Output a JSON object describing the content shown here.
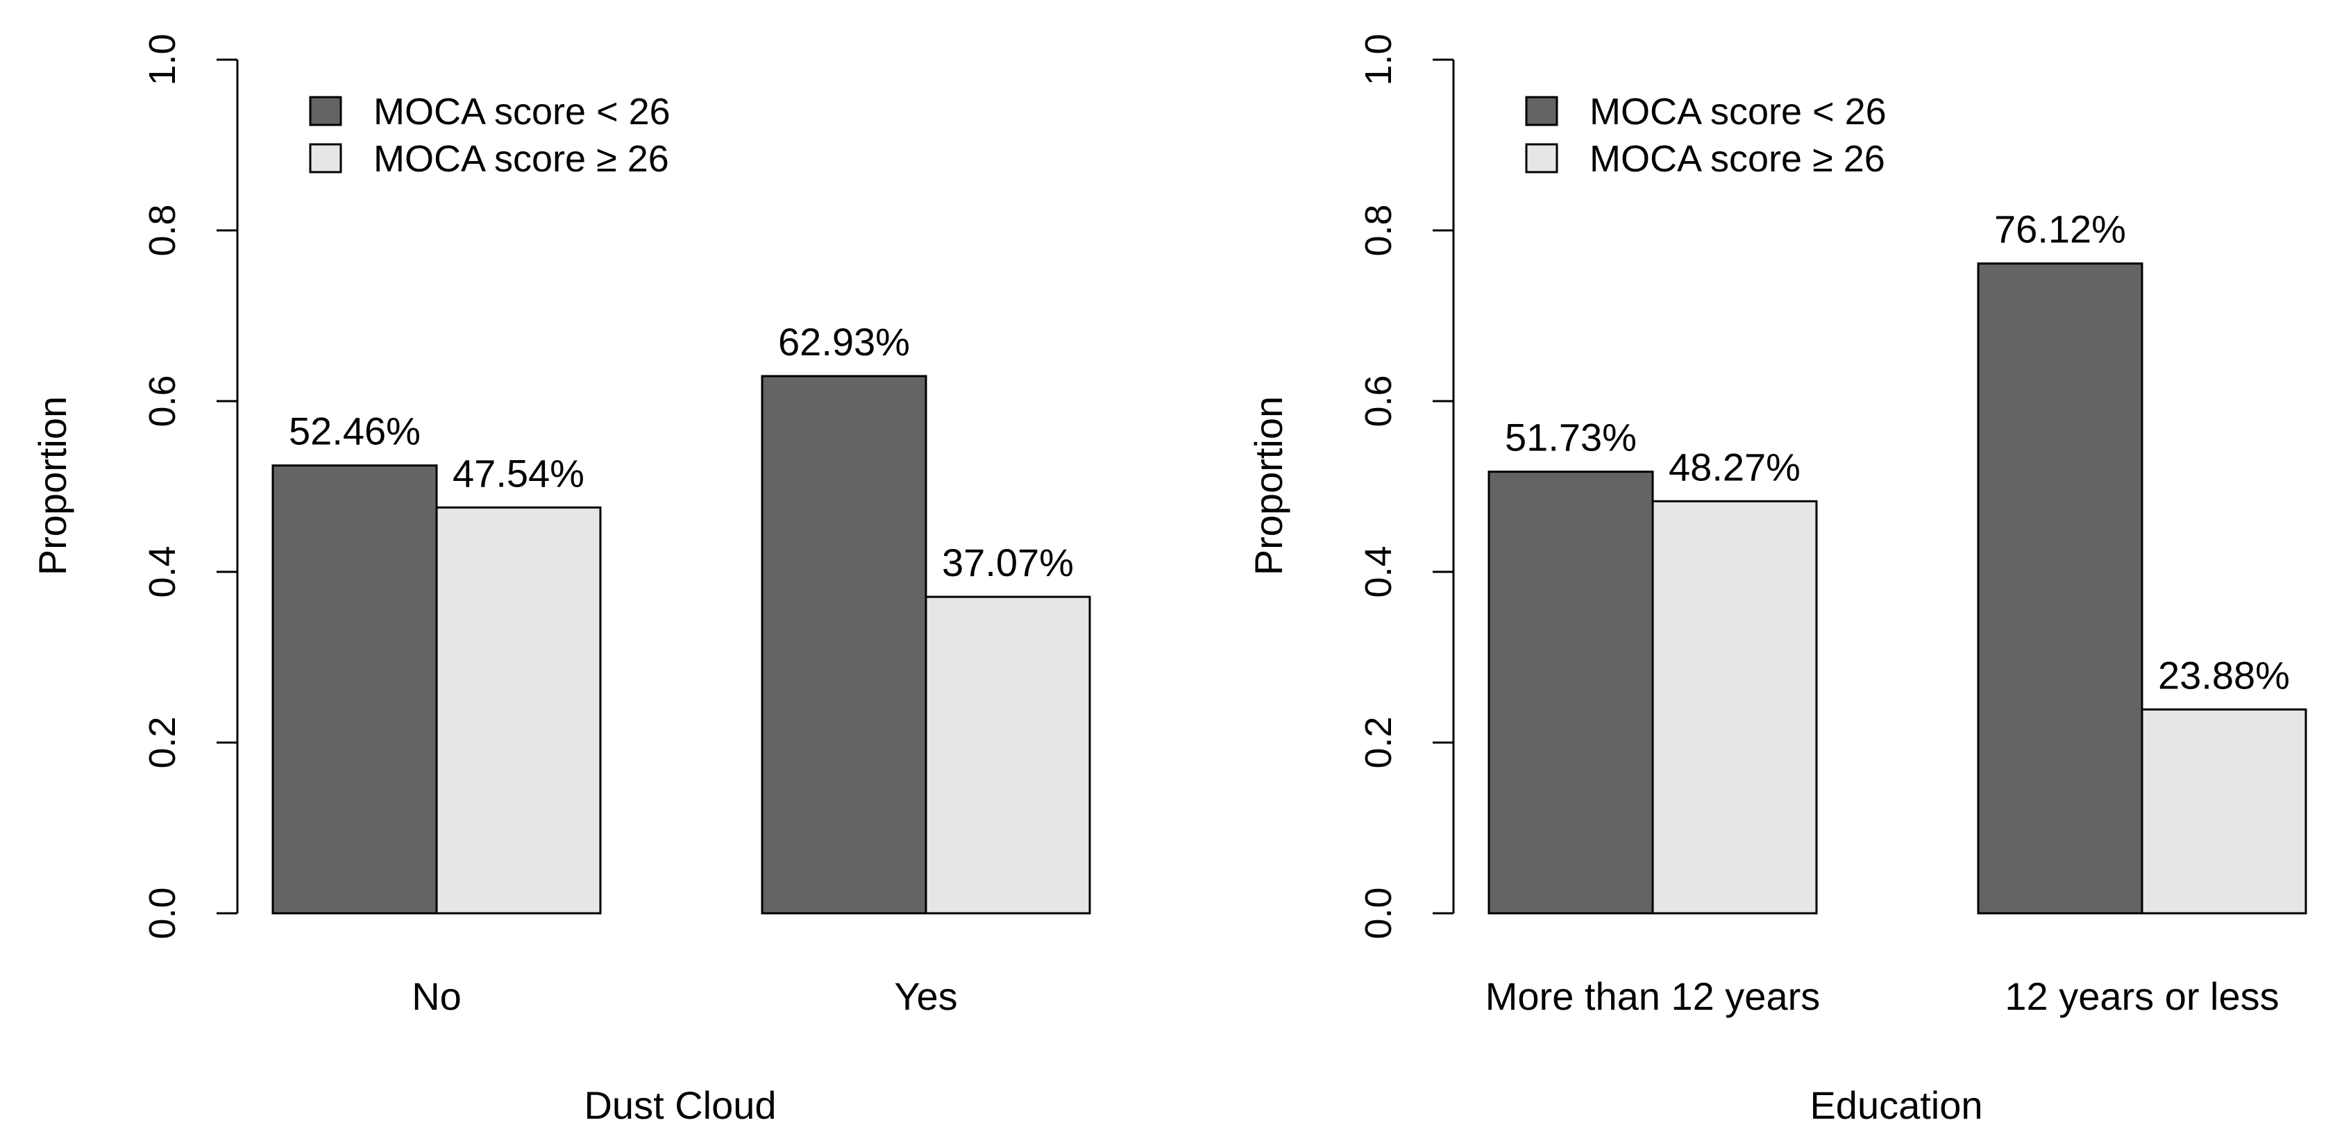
{
  "chart_data": [
    {
      "type": "bar",
      "title": "",
      "xlabel": "Dust Cloud",
      "ylabel": "Proportion",
      "ylim": [
        0,
        1
      ],
      "yticks": [
        "0.0",
        "0.2",
        "0.4",
        "0.6",
        "0.8",
        "1.0"
      ],
      "ytick_values": [
        0,
        0.2,
        0.4,
        0.6,
        0.8,
        1.0
      ],
      "categories": [
        "No",
        "Yes"
      ],
      "series": [
        {
          "name": "MOCA score < 26",
          "values": [
            0.5246,
            0.6293
          ],
          "labels": [
            "52.46%",
            "62.93%"
          ]
        },
        {
          "name": "MOCA score ≥ 26",
          "values": [
            0.4754,
            0.3707
          ],
          "labels": [
            "47.54%",
            "37.07%"
          ]
        }
      ],
      "legend": {
        "position": "top-left",
        "entries": [
          "MOCA score < 26",
          "MOCA score ≥ 26"
        ]
      },
      "grid": false
    },
    {
      "type": "bar",
      "title": "",
      "xlabel": "Education",
      "ylabel": "Proportion",
      "ylim": [
        0,
        1
      ],
      "yticks": [
        "0.0",
        "0.2",
        "0.4",
        "0.6",
        "0.8",
        "1.0"
      ],
      "ytick_values": [
        0,
        0.2,
        0.4,
        0.6,
        0.8,
        1.0
      ],
      "categories": [
        "More than 12 years",
        "12 years or less"
      ],
      "series": [
        {
          "name": "MOCA score < 26",
          "values": [
            0.5173,
            0.7612
          ],
          "labels": [
            "51.73%",
            "76.12%"
          ]
        },
        {
          "name": "MOCA score ≥ 26",
          "values": [
            0.4827,
            0.2388
          ],
          "labels": [
            "48.27%",
            "23.88%"
          ]
        }
      ],
      "legend": {
        "position": "top-left",
        "entries": [
          "MOCA score < 26",
          "MOCA score ≥ 26"
        ]
      },
      "grid": false
    }
  ],
  "colors": {
    "series": [
      "#646464",
      "#e6e6e6"
    ],
    "outline": "#000000"
  }
}
